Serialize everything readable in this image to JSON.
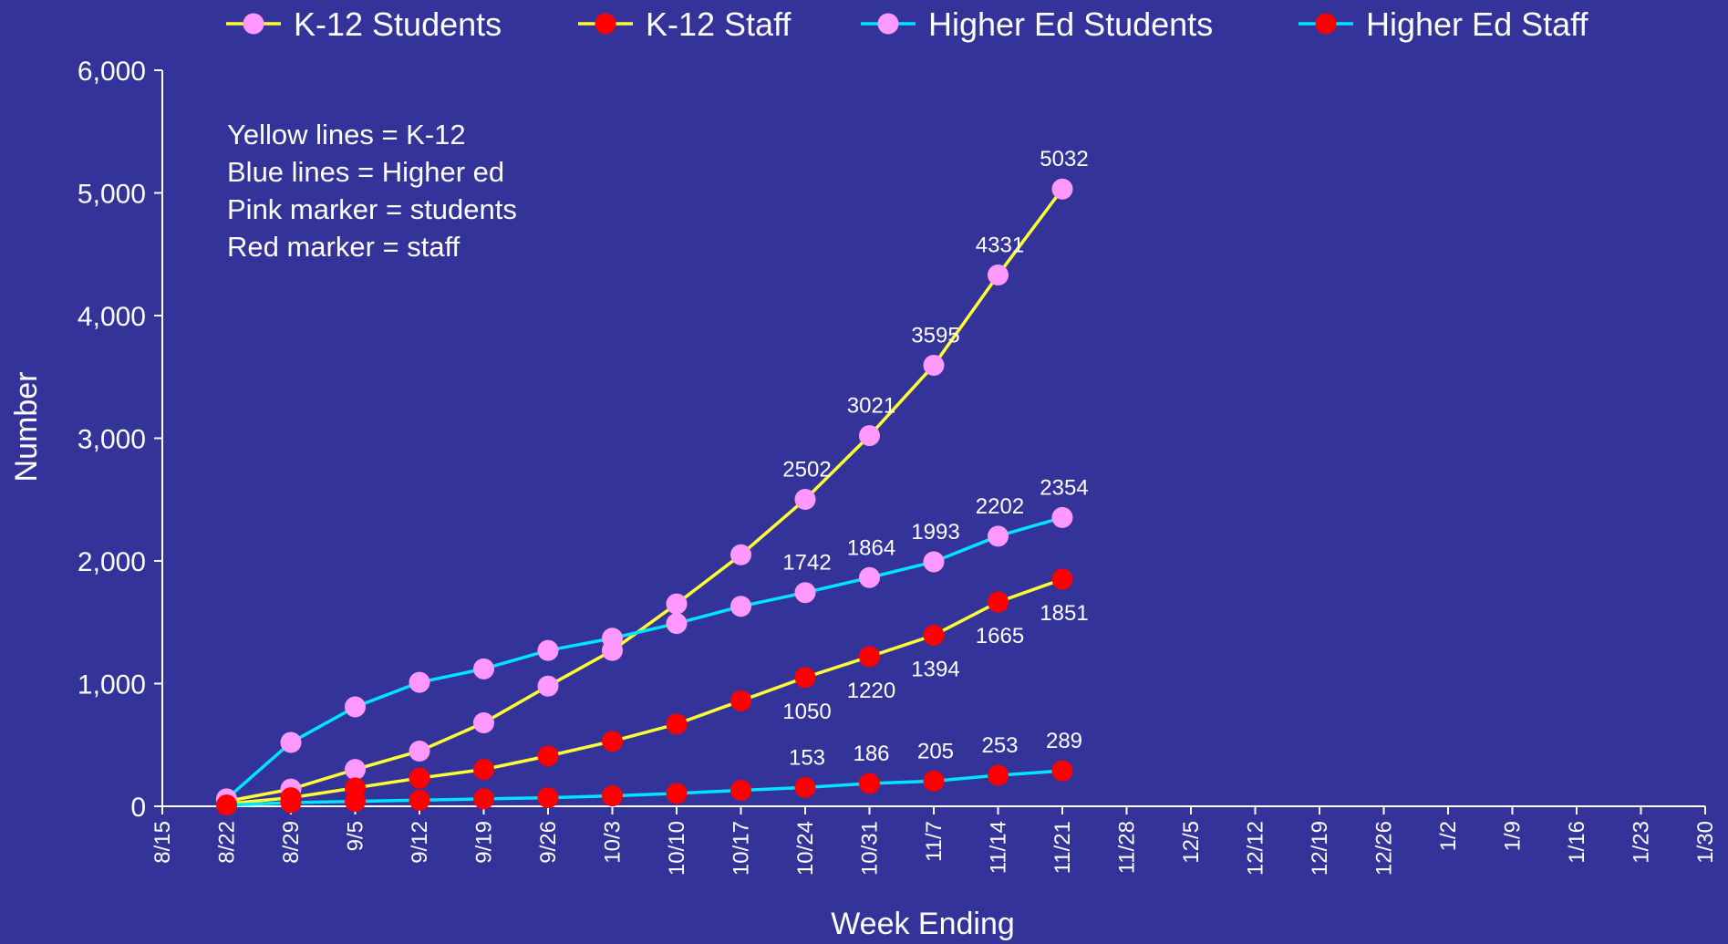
{
  "chart_data": {
    "type": "line",
    "xlabel": "Week Ending",
    "ylabel": "Number",
    "ylim": [
      0,
      6000
    ],
    "y_ticks": [
      "0",
      "1,000",
      "2,000",
      "3,000",
      "4,000",
      "5,000",
      "6,000"
    ],
    "y_tick_values": [
      0,
      1000,
      2000,
      3000,
      4000,
      5000,
      6000
    ],
    "x_ticks": [
      "8/15",
      "8/22",
      "8/29",
      "9/5",
      "9/12",
      "9/19",
      "9/26",
      "10/3",
      "10/10",
      "10/17",
      "10/24",
      "10/31",
      "11/7",
      "11/14",
      "11/21",
      "11/28",
      "12/5",
      "12/12",
      "12/19",
      "12/26",
      "1/2",
      "1/9",
      "1/16",
      "1/23",
      "1/30"
    ],
    "grid": false,
    "legend_position": "top",
    "notes": [
      "Yellow lines = K-12",
      "Blue lines = Higher ed",
      "Pink marker = students",
      "Red marker = staff"
    ],
    "series": [
      {
        "name": "K-12 Students",
        "line_color": "#ffff33",
        "marker_color": "#ff99ff",
        "categories": [
          "8/22",
          "8/29",
          "9/5",
          "9/12",
          "9/19",
          "9/26",
          "10/3",
          "10/10",
          "10/17",
          "10/24",
          "10/31",
          "11/7",
          "11/14",
          "11/21"
        ],
        "values": [
          40,
          140,
          300,
          450,
          680,
          980,
          1270,
          1650,
          2050,
          2502,
          3021,
          3595,
          4331,
          5032
        ],
        "labels": [
          "",
          "",
          "",
          "",
          "",
          "",
          "",
          "",
          "",
          "2502",
          "3021",
          "3595",
          "4331",
          "5032"
        ],
        "label_position": "above"
      },
      {
        "name": "K-12 Staff",
        "line_color": "#ffff33",
        "marker_color": "#ff0000",
        "categories": [
          "8/22",
          "8/29",
          "9/5",
          "9/12",
          "9/19",
          "9/26",
          "10/3",
          "10/10",
          "10/17",
          "10/24",
          "10/31",
          "11/7",
          "11/14",
          "11/21"
        ],
        "values": [
          20,
          70,
          150,
          230,
          300,
          410,
          530,
          670,
          860,
          1050,
          1220,
          1394,
          1665,
          1851
        ],
        "labels": [
          "",
          "",
          "",
          "",
          "",
          "",
          "",
          "",
          "",
          "1050",
          "1220",
          "1394",
          "1665",
          "1851"
        ],
        "label_position": "below"
      },
      {
        "name": "Higher Ed Students",
        "line_color": "#00e5ff",
        "marker_color": "#ff99ff",
        "categories": [
          "8/22",
          "8/29",
          "9/5",
          "9/12",
          "9/19",
          "9/26",
          "10/3",
          "10/10",
          "10/17",
          "10/24",
          "10/31",
          "11/7",
          "11/14",
          "11/21"
        ],
        "values": [
          60,
          520,
          810,
          1010,
          1120,
          1270,
          1370,
          1490,
          1630,
          1742,
          1864,
          1993,
          2202,
          2354
        ],
        "labels": [
          "",
          "",
          "",
          "",
          "",
          "",
          "",
          "",
          "",
          "1742",
          "1864",
          "1993",
          "2202",
          "2354"
        ],
        "label_position": "above"
      },
      {
        "name": "Higher Ed Staff",
        "line_color": "#00e5ff",
        "marker_color": "#ff0000",
        "categories": [
          "8/22",
          "8/29",
          "9/5",
          "9/12",
          "9/19",
          "9/26",
          "10/3",
          "10/10",
          "10/17",
          "10/24",
          "10/31",
          "11/7",
          "11/14",
          "11/21"
        ],
        "values": [
          10,
          30,
          40,
          50,
          60,
          70,
          85,
          105,
          130,
          153,
          186,
          205,
          253,
          289
        ],
        "labels": [
          "",
          "",
          "",
          "",
          "",
          "",
          "",
          "",
          "",
          "153",
          "186",
          "205",
          "253",
          "289"
        ],
        "label_position": "above"
      }
    ]
  }
}
